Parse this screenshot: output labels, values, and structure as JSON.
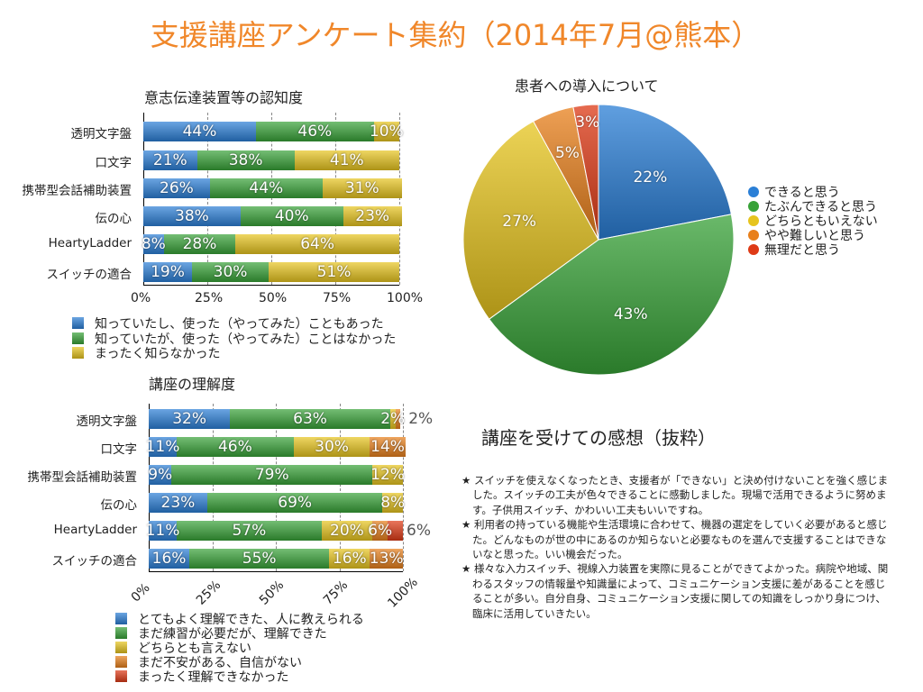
{
  "title": "支援講座アンケート集約（2014年7月@熊本）",
  "colors": {
    "blue": "#2b7fd6",
    "green": "#38a238",
    "yellow": "#e6c41e",
    "orange": "#e8801c",
    "red": "#de3a16",
    "title": "#f0872a"
  },
  "chart_data": [
    {
      "type": "bar",
      "stacked": "percent",
      "orientation": "horizontal",
      "title": "意志伝達装置等の認知度",
      "categories": [
        "透明文字盤",
        "口文字",
        "携帯型会話補助装置",
        "伝の心",
        "HeartyLadder",
        "スイッチの適合"
      ],
      "series": [
        {
          "name": "知っていたし、使った（やってみた）こともあった",
          "color": "blue",
          "values": [
            44,
            21,
            26,
            38,
            8,
            19
          ]
        },
        {
          "name": "知っていたが、使った（やってみた）ことはなかった",
          "color": "green",
          "values": [
            46,
            38,
            44,
            40,
            28,
            30
          ]
        },
        {
          "name": "まったく知らなかった",
          "color": "yellow",
          "values": [
            10,
            41,
            31,
            23,
            64,
            51
          ]
        }
      ],
      "xticks": [
        "0%",
        "25%",
        "50%",
        "75%",
        "100%"
      ],
      "xlim": [
        0,
        100
      ],
      "grid": true,
      "legend": "bottom"
    },
    {
      "type": "bar",
      "stacked": "percent",
      "orientation": "horizontal",
      "title": "講座の理解度",
      "categories": [
        "透明文字盤",
        "口文字",
        "携帯型会話補助装置",
        "伝の心",
        "HeartyLadder",
        "スイッチの適合"
      ],
      "series": [
        {
          "name": "とてもよく理解できた、人に教えられる",
          "color": "blue",
          "values": [
            32,
            11,
            9,
            23,
            11,
            16
          ]
        },
        {
          "name": "まだ練習が必要だが、理解できた",
          "color": "green",
          "values": [
            63,
            46,
            79,
            69,
            57,
            55
          ]
        },
        {
          "name": "どちらとも言えない",
          "color": "yellow",
          "values": [
            2,
            30,
            12,
            8,
            20,
            16
          ]
        },
        {
          "name": "まだ不安がある、自信がない",
          "color": "orange",
          "values": [
            2,
            14,
            0,
            0,
            6,
            13
          ]
        },
        {
          "name": "まったく理解できなかった",
          "color": "red",
          "values": [
            0,
            0,
            0,
            0,
            6,
            0
          ]
        }
      ],
      "xticks": [
        "0%",
        "25%",
        "50%",
        "75%",
        "100%"
      ],
      "xlim": [
        0,
        100
      ],
      "grid": true,
      "legend": "bottom"
    },
    {
      "type": "pie",
      "title": "患者への導入について",
      "slices": [
        {
          "name": "できると思う",
          "value": 22,
          "color": "blue"
        },
        {
          "name": "たぶんできると思う",
          "value": 43,
          "color": "green"
        },
        {
          "name": "どちらともいえない",
          "value": 27,
          "color": "yellow"
        },
        {
          "name": "やや難しいと思う",
          "value": 5,
          "color": "orange"
        },
        {
          "name": "無理だと思う",
          "value": 3,
          "color": "red"
        }
      ],
      "legend": "right"
    }
  ],
  "comments": {
    "title": "講座を受けての感想（抜粋）",
    "items": [
      "★ スイッチを使えなくなったとき、支援者が「できない」と決め付けないことを強く感じました。スイッチの工夫が色々できることに感動しました。現場で活用できるように努めます。子供用スイッチ、かわいい工夫もいいですね。",
      "★ 利用者の持っている機能や生活環境に合わせて、機器の選定をしていく必要があると感じた。どんなものが世の中にあるのか知らないと必要なものを選んで支援することはできないなと思った。いい機会だった。",
      "★ 様々な入力スイッチ、視線入力装置を実際に見ることができてよかった。病院や地域、関わるスタッフの情報量や知識量によって、コミュニケーション支援に差があることを感じることが多い。自分自身、コミュニケーション支援に関しての知識をしっかり身につけ、臨床に活用していきたい。"
    ]
  }
}
